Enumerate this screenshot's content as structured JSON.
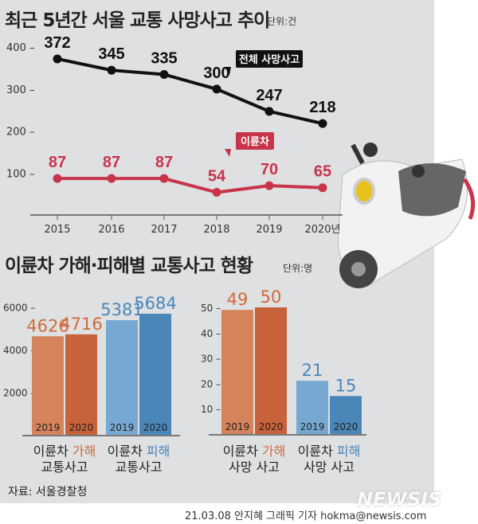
{
  "chart_data": [
    {
      "type": "line",
      "title": "최근 5년간 서울 교통 사망사고 추이",
      "unit": "단위:건",
      "categories": [
        "2015",
        "2016",
        "2017",
        "2018",
        "2019",
        "2020년"
      ],
      "yticks": [
        100,
        200,
        300,
        400
      ],
      "ylim": [
        0,
        420
      ],
      "series": [
        {
          "name": "전체 사망사고",
          "color": "#111111",
          "values": [
            372,
            345,
            335,
            300,
            247,
            218
          ]
        },
        {
          "name": "이륜차",
          "color": "#c8344a",
          "values": [
            87,
            87,
            87,
            54,
            70,
            65
          ]
        }
      ]
    },
    {
      "type": "bar",
      "title": "이륜차 가해·피해별 교통사고 현황",
      "unit": "단위:명",
      "panels": [
        {
          "yticks": [
            2000,
            4000,
            6000
          ],
          "groups": [
            {
              "label1": "이륜차",
              "label2": "가해",
              "label3": "교통사고",
              "years": [
                "2019",
                "2020"
              ],
              "values": [
                4626,
                4716
              ],
              "colors": [
                "#d4835a",
                "#c8623a"
              ],
              "text_color": "#d06a3a"
            },
            {
              "label1": "이륜차",
              "label2": "피해",
              "label3": "교통사고",
              "years": [
                "2019",
                "2020"
              ],
              "values": [
                5381,
                5684
              ],
              "colors": [
                "#76a8d2",
                "#4a86b8"
              ],
              "text_color": "#4a86b8"
            }
          ]
        },
        {
          "yticks": [
            10,
            20,
            30,
            40,
            50
          ],
          "groups": [
            {
              "label1": "이륜차",
              "label2": "가해",
              "label3": "사망 사고",
              "years": [
                "2019",
                "2020"
              ],
              "values": [
                49,
                50
              ],
              "colors": [
                "#d4835a",
                "#c8623a"
              ],
              "text_color": "#d06a3a"
            },
            {
              "label1": "이륜차",
              "label2": "피해",
              "label3": "사망 사고",
              "years": [
                "2019",
                "2020"
              ],
              "values": [
                21,
                15
              ],
              "colors": [
                "#76a8d2",
                "#4a86b8"
              ],
              "text_color": "#4a86b8"
            }
          ]
        }
      ]
    }
  ],
  "source": "자료: 서울경찰청",
  "credit": "21.03.08 안지혜 그래픽 기자 hokma@newsis.com",
  "logo": "NEWSIS"
}
